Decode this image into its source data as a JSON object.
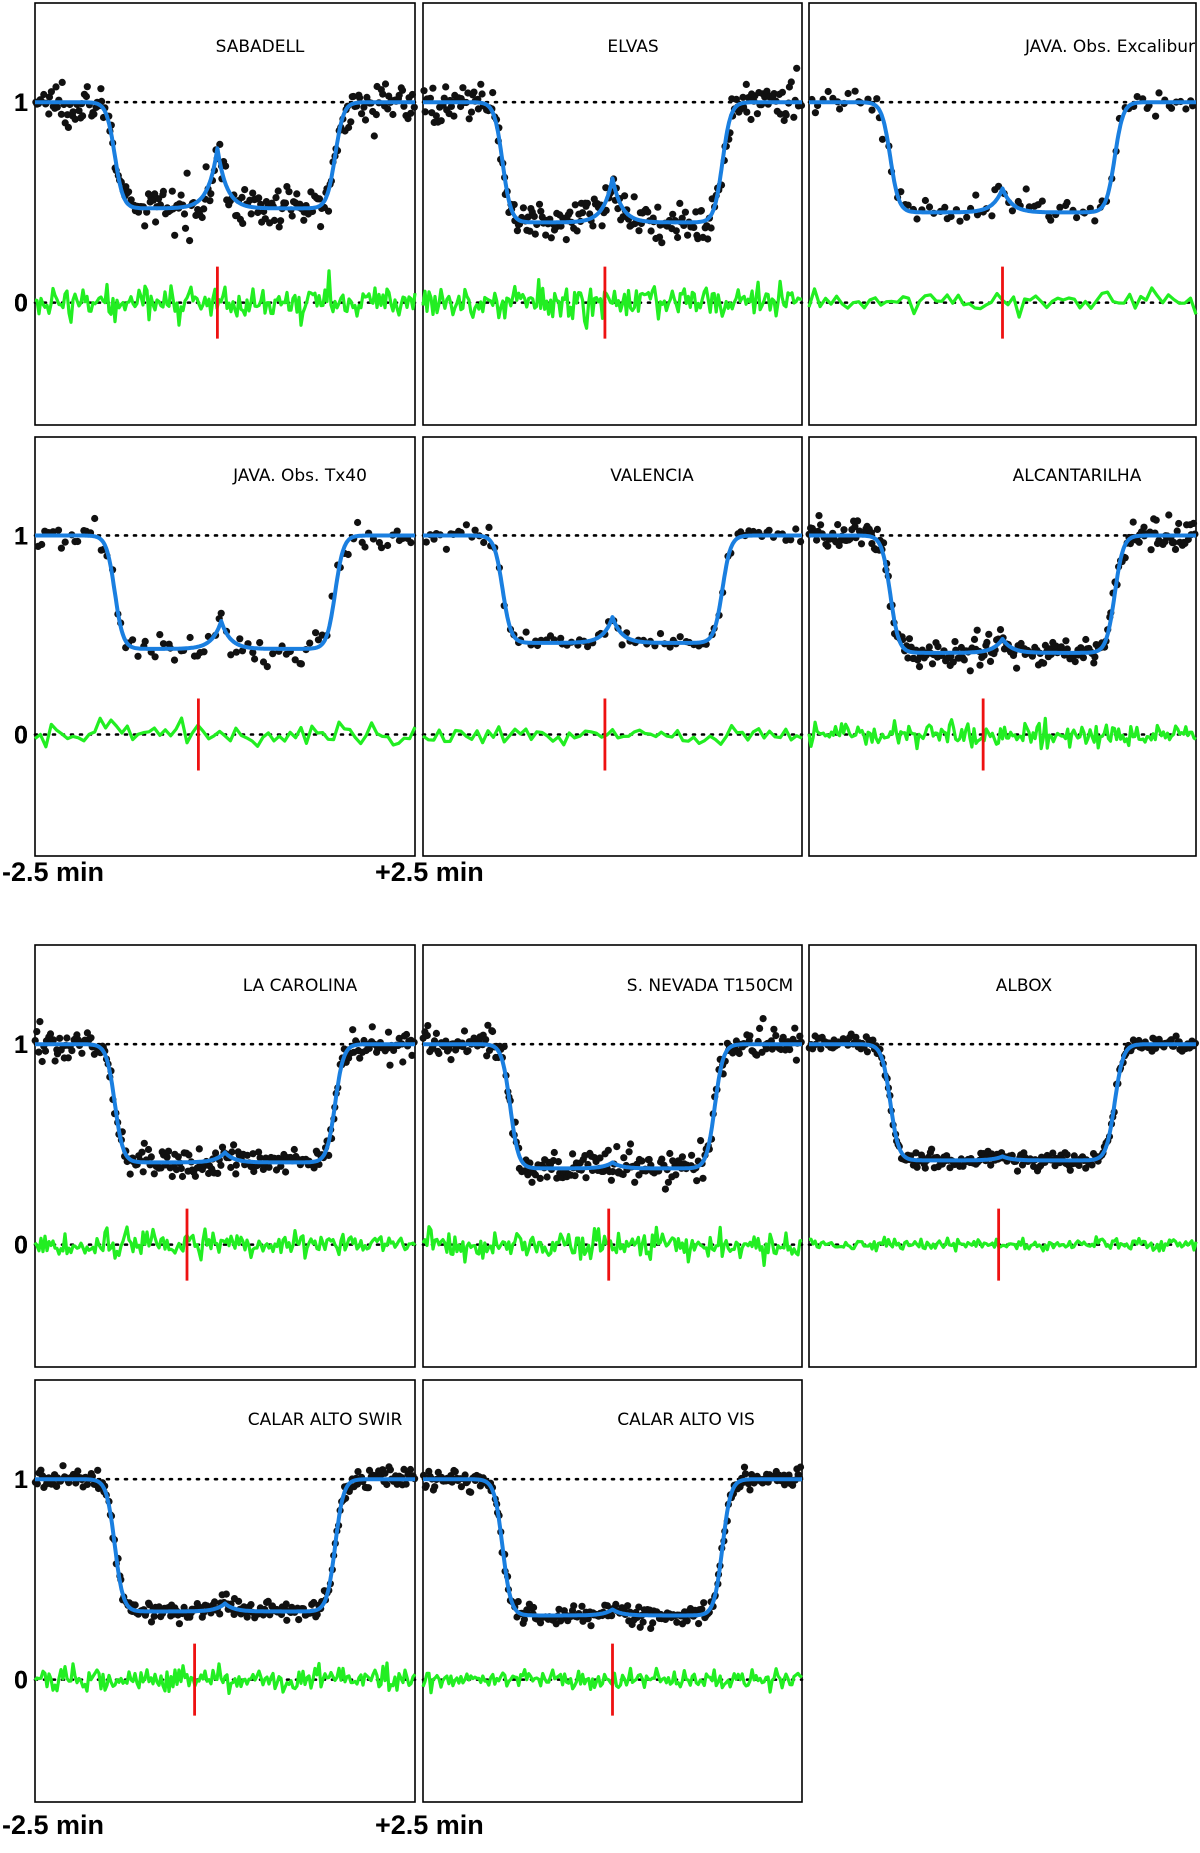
{
  "figure": {
    "x_captions": [
      {
        "left": "-2.5 min",
        "right": "+2.5 min"
      },
      {
        "left": "-2.5 min",
        "right": "+2.5 min"
      }
    ]
  },
  "colors": {
    "data_points": "#111111",
    "model": "#1a7fe0",
    "residuals": "#22ee22",
    "marker": "#ee1111",
    "reference": "#000000"
  },
  "chart_data": [
    {
      "type": "scatter",
      "title": "SABADELL",
      "yticks": [
        "1",
        "0"
      ],
      "xlim": [
        -2.5,
        2.5
      ],
      "depth": 0.47,
      "ingress": -1.45,
      "egress": 1.45,
      "flash": {
        "t": -0.1,
        "amp": 0.3
      },
      "noise": 0.05,
      "residual_noise": 0.04,
      "sampling": "dense",
      "marker_t": -0.1
    },
    {
      "type": "scatter",
      "title": "ELVAS",
      "yticks": [
        "1",
        "0"
      ],
      "xlim": [
        -2.5,
        2.5
      ],
      "depth": 0.4,
      "ingress": -1.45,
      "egress": 1.45,
      "flash": {
        "t": 0.0,
        "amp": 0.22
      },
      "noise": 0.05,
      "residual_noise": 0.04,
      "sampling": "dense",
      "marker_t": -0.1
    },
    {
      "type": "scatter",
      "title": "JAVA. Obs. Excalibur",
      "yticks": [
        "1",
        "0"
      ],
      "xlim": [
        -2.5,
        2.5
      ],
      "depth": 0.45,
      "ingress": -1.45,
      "egress": 1.45,
      "flash": {
        "t": 0.0,
        "amp": 0.12
      },
      "noise": 0.035,
      "residual_noise": 0.03,
      "sampling": "sparse",
      "marker_t": 0.0
    },
    {
      "type": "scatter",
      "title": "JAVA. Obs. Tx40",
      "yticks": [
        "1",
        "0"
      ],
      "xlim": [
        -2.5,
        2.5
      ],
      "depth": 0.43,
      "ingress": -1.45,
      "egress": 1.45,
      "flash": {
        "t": -0.05,
        "amp": 0.14
      },
      "noise": 0.035,
      "residual_noise": 0.03,
      "sampling": "sparse",
      "marker_t": -0.35
    },
    {
      "type": "scatter",
      "title": "VALENCIA",
      "yticks": [
        "1",
        "0"
      ],
      "xlim": [
        -2.5,
        2.5
      ],
      "depth": 0.46,
      "ingress": -1.45,
      "egress": 1.45,
      "flash": {
        "t": 0.0,
        "amp": 0.13
      },
      "noise": 0.025,
      "residual_noise": 0.025,
      "sampling": "sparse",
      "marker_t": -0.1
    },
    {
      "type": "scatter",
      "title": "ALCANTARILHA",
      "yticks": [
        "1",
        "0"
      ],
      "xlim": [
        -2.5,
        2.5
      ],
      "depth": 0.41,
      "ingress": -1.45,
      "egress": 1.45,
      "flash": {
        "t": 0.0,
        "amp": 0.07
      },
      "noise": 0.04,
      "residual_noise": 0.03,
      "sampling": "dense",
      "marker_t": -0.25
    },
    {
      "type": "scatter",
      "title": "LA CAROLINA",
      "yticks": [
        "1",
        "0"
      ],
      "xlim": [
        -2.5,
        2.5
      ],
      "depth": 0.41,
      "ingress": -1.45,
      "egress": 1.45,
      "flash": {
        "t": 0.0,
        "amp": 0.05
      },
      "noise": 0.04,
      "residual_noise": 0.03,
      "sampling": "dense",
      "marker_t": -0.5
    },
    {
      "type": "scatter",
      "title": "S. NEVADA T150CM",
      "yticks": [
        "1",
        "0"
      ],
      "xlim": [
        -2.5,
        2.5
      ],
      "depth": 0.38,
      "ingress": -1.35,
      "egress": 1.35,
      "flash": {
        "t": 0.0,
        "amp": 0.03
      },
      "noise": 0.04,
      "residual_noise": 0.035,
      "sampling": "dense",
      "marker_t": -0.05
    },
    {
      "type": "scatter",
      "title": "ALBOX",
      "yticks": [
        "1",
        "0"
      ],
      "xlim": [
        -2.5,
        2.5
      ],
      "depth": 0.42,
      "ingress": -1.45,
      "egress": 1.45,
      "flash": {
        "t": 0.0,
        "amp": 0.02
      },
      "noise": 0.02,
      "residual_noise": 0.015,
      "sampling": "dense",
      "marker_t": -0.05
    },
    {
      "type": "scatter",
      "title": "CALAR ALTO SWIR",
      "yticks": [
        "1",
        "0"
      ],
      "xlim": [
        -2.5,
        2.5
      ],
      "depth": 0.34,
      "ingress": -1.45,
      "egress": 1.45,
      "flash": {
        "t": 0.0,
        "amp": 0.04
      },
      "noise": 0.025,
      "residual_noise": 0.03,
      "sampling": "dense",
      "marker_t": -0.4
    },
    {
      "type": "scatter",
      "title": "CALAR ALTO VIS",
      "yticks": [
        "1",
        "0"
      ],
      "xlim": [
        -2.5,
        2.5
      ],
      "depth": 0.32,
      "ingress": -1.45,
      "egress": 1.45,
      "flash": {
        "t": 0.0,
        "amp": 0.03
      },
      "noise": 0.025,
      "residual_noise": 0.025,
      "sampling": "dense",
      "marker_t": 0.0
    }
  ]
}
